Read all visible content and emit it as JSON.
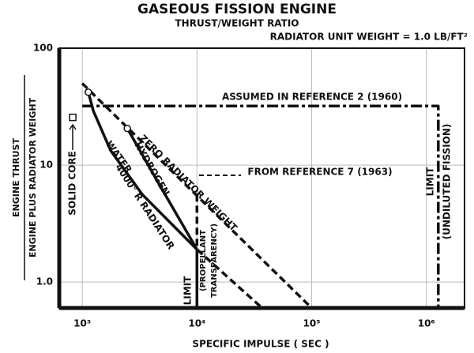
{
  "chart_data": {
    "type": "line",
    "title": "GASEOUS FISSION ENGINE",
    "subtitle": "THRUST/WEIGHT RATIO",
    "note": "RADIATOR UNIT WEIGHT = 1.0 LB/FT²",
    "xlabel": "SPECIFIC IMPULSE ( SEC )",
    "ylabel": [
      "ENGINE THRUST",
      "ENGINE PLUS RADIATOR WEIGHT"
    ],
    "xscale": "log",
    "yscale": "log",
    "grid": true,
    "color": "#111111",
    "xlim": [
      630,
      2150000
    ],
    "ylim": [
      0.6,
      100
    ],
    "xticks": [
      {
        "value": 1000,
        "label": "10³"
      },
      {
        "value": 10000,
        "label": "10⁴"
      },
      {
        "value": 100000,
        "label": "10⁵"
      },
      {
        "value": 1000000,
        "label": "10⁶"
      }
    ],
    "yticks": [
      {
        "value": 1,
        "label": "1.0"
      },
      10,
      100
    ],
    "series": [
      {
        "name": "ASSUMED IN REFERENCE 2 (1960)",
        "style": "dashdot",
        "x": [
          1000,
          1270000,
          1270000
        ],
        "y": [
          32,
          32,
          0.6
        ]
      },
      {
        "name": "ZERO RADIATOR WEIGHT",
        "style": "dashed",
        "x": [
          1000,
          100000
        ],
        "y": [
          50,
          0.6
        ]
      },
      {
        "name": "FROM REFERENCE 7 (1963)",
        "style": "dashed",
        "x": [
          10000,
          10000,
          37000
        ],
        "y": [
          5.6,
          1.9,
          0.6
        ]
      },
      {
        "name": "HYDROGEN",
        "style": "solid",
        "start_marker": "circle",
        "x": [
          2470,
          4590,
          10000
        ],
        "y": [
          20.6,
          7.1,
          1.9
        ]
      },
      {
        "name": "WATER",
        "style": "solid",
        "start_marker": "circle",
        "x": [
          1130,
          1250,
          1770,
          3340,
          10000
        ],
        "y": [
          42,
          29,
          13.3,
          5.6,
          1.9
        ]
      },
      {
        "style": "solid",
        "x": [
          10000,
          10000
        ],
        "y": [
          1.9,
          0.6
        ]
      },
      {
        "name": "SOLID CORE",
        "style": "point",
        "marker": "square",
        "x": [
          826
        ],
        "y": [
          25.6
        ]
      }
    ],
    "annotations": [
      "4000° R RADIATOR",
      "LIMIT",
      "(PROPELLANT",
      "TRANSPARENCY)",
      "LIMIT",
      "(UNDILUTED FISSION)"
    ]
  }
}
